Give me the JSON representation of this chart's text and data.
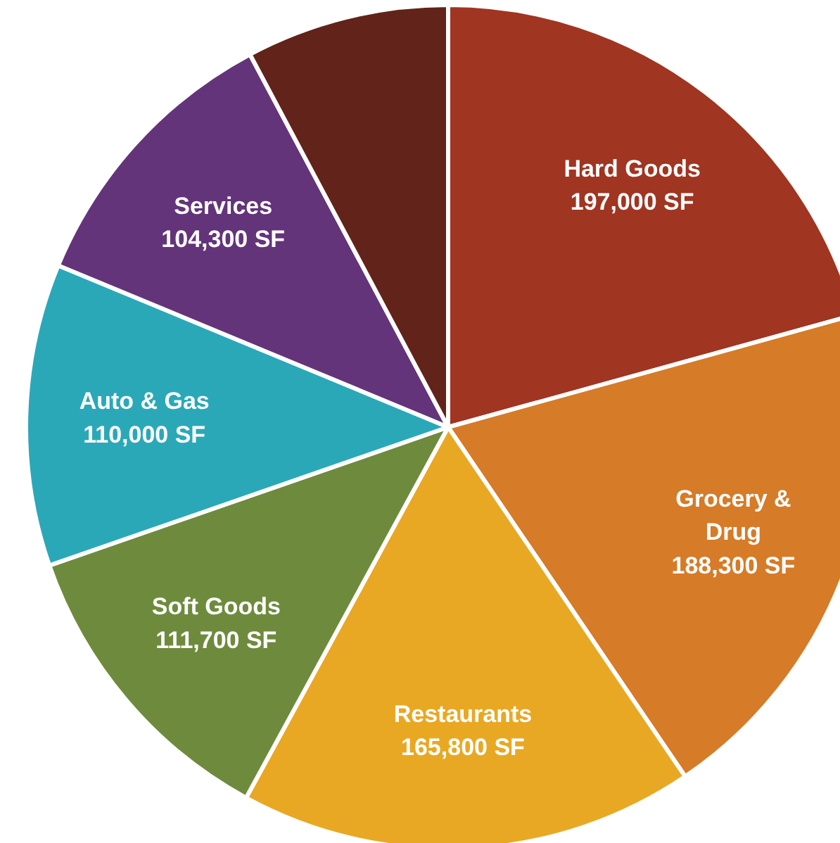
{
  "chart_data": {
    "type": "pie",
    "categories": [
      "Hard Goods",
      "Grocery & Drug",
      "Restaurants",
      "Soft Goods",
      "Auto & Gas",
      "Services",
      null
    ],
    "values": [
      197000,
      188300,
      165800,
      111700,
      110000,
      104300,
      74000
    ],
    "value_labels": [
      "197,000 SF",
      "188,300 SF",
      "165,800 SF",
      "111,700 SF",
      "110,000 SF",
      "104,300 SF",
      null
    ],
    "colors": [
      "#a03522",
      "#d67b27",
      "#e9a823",
      "#6e8b3d",
      "#2ba8b8",
      "#63347a",
      "#62231a"
    ]
  }
}
